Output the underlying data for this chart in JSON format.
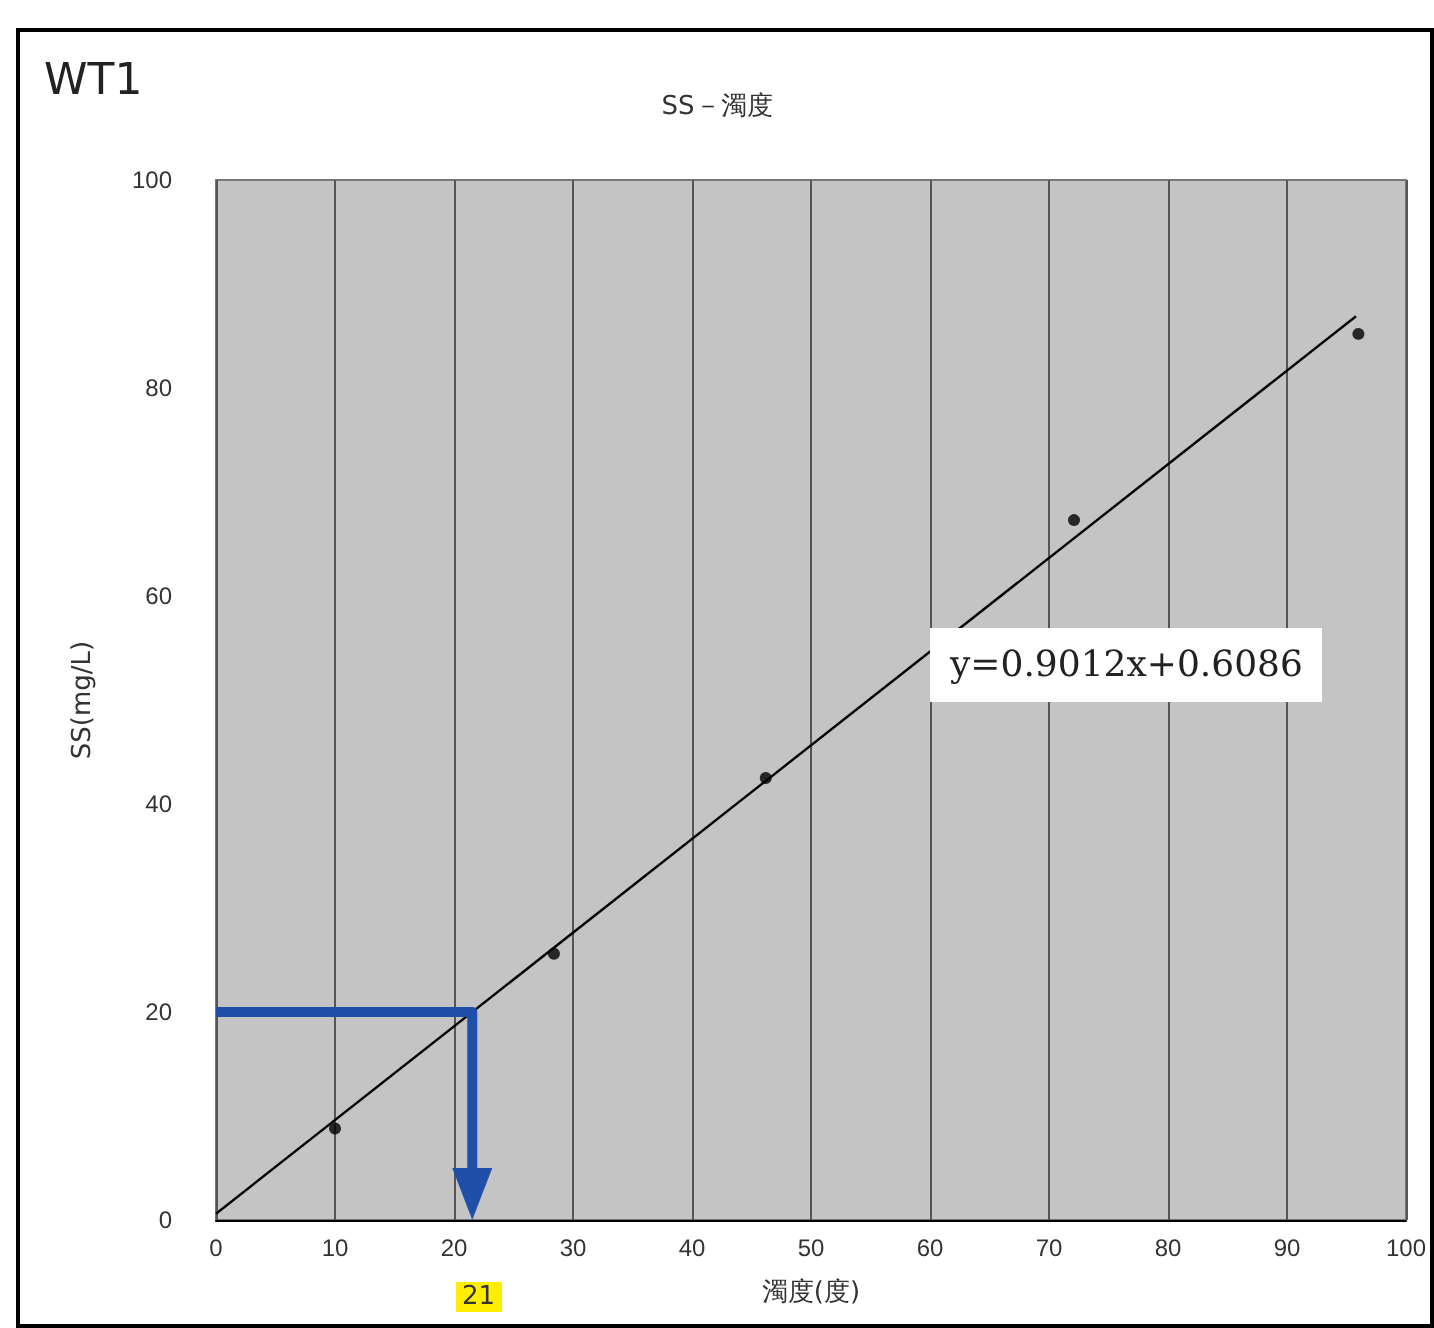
{
  "chart_data": {
    "type": "scatter",
    "title": "SS－濁度",
    "xlabel": "濁度(度)",
    "ylabel": "SS(mg/L)",
    "annotations": [
      "WT1",
      "y=0.9012x+0.6086",
      "21"
    ],
    "series": [
      {
        "color": "#000000",
        "marker": "circle",
        "x": [
          10,
          28.4,
          46.2,
          72.1,
          96
        ],
        "values": [
          8.8,
          25.6,
          42.5,
          67.3,
          85.2
        ]
      },
      {
        "type": "line",
        "marker": "none",
        "color": "#000000",
        "x": [
          0,
          95.8
        ],
        "values": [
          0.6,
          86.9
        ]
      }
    ],
    "ref_lines": [
      {
        "axis": "y",
        "value": 20,
        "color": "#1f4fa8"
      }
    ],
    "xlim": [
      0,
      100
    ],
    "xticks": [
      0,
      10,
      20,
      30,
      40,
      50,
      60,
      70,
      80,
      90,
      100
    ],
    "ylim": [
      0,
      100
    ],
    "yticks": [
      0,
      20,
      40,
      60,
      80,
      100
    ],
    "grid": "x",
    "line_style": "solid"
  }
}
